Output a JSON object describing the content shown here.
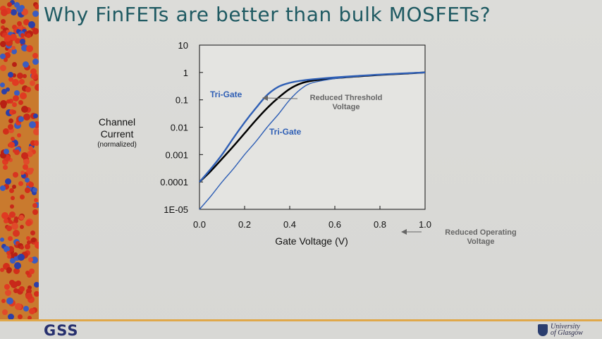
{
  "slide": {
    "title": "Why FinFETs are better than bulk MOSFETs?",
    "footer_logo": "GSS",
    "university_line1": "University",
    "university_line2": "of Glasgow",
    "colors": {
      "title": "#1f5a62",
      "sidebar": "#c97a2e",
      "footer_rule": "#e0a84a",
      "tri_gate": "#2f5fb5",
      "bulk": "#000000"
    }
  },
  "chart_data": {
    "type": "line",
    "xlabel": "Gate Voltage (V)",
    "ylabel_line1": "Channel",
    "ylabel_line2": "Current",
    "ylabel_sub": "(normalized)",
    "xlim": [
      0.0,
      1.0
    ],
    "ylim": [
      1e-05,
      10
    ],
    "yscale": "log",
    "grid": false,
    "x_ticks": [
      "0.0",
      "0.2",
      "0.4",
      "0.6",
      "0.8",
      "1.0"
    ],
    "y_ticks": [
      {
        "value": 10,
        "label": "10"
      },
      {
        "value": 1,
        "label": "1"
      },
      {
        "value": 0.1,
        "label": "0.1"
      },
      {
        "value": 0.01,
        "label": "0.01"
      },
      {
        "value": 0.001,
        "label": "0.001"
      },
      {
        "value": 0.0001,
        "label": "0.0001"
      },
      {
        "value": 1e-05,
        "label": "1E-05"
      }
    ],
    "series": [
      {
        "color": "#000000",
        "x": [
          0,
          0.05,
          0.1,
          0.15,
          0.2,
          0.25,
          0.3,
          0.35,
          0.4,
          0.45,
          0.5,
          0.6,
          0.7,
          0.8,
          0.9,
          1.0
        ],
        "y": [
          0.0001,
          0.00025,
          0.0007,
          0.002,
          0.006,
          0.018,
          0.05,
          0.12,
          0.25,
          0.4,
          0.5,
          0.62,
          0.72,
          0.82,
          0.9,
          1.0
        ]
      },
      {
        "color": "#2f5fb5",
        "x": [
          0,
          0.05,
          0.1,
          0.15,
          0.2,
          0.25,
          0.3,
          0.35,
          0.4,
          0.45,
          0.5,
          0.6,
          0.7,
          0.8,
          0.9,
          1.0
        ],
        "y": [
          0.0001,
          0.0003,
          0.001,
          0.004,
          0.015,
          0.05,
          0.15,
          0.3,
          0.42,
          0.5,
          0.56,
          0.66,
          0.75,
          0.84,
          0.92,
          1.0
        ]
      },
      {
        "color": "#2f5fb5",
        "x": [
          0,
          0.05,
          0.1,
          0.15,
          0.2,
          0.25,
          0.3,
          0.35,
          0.4,
          0.45,
          0.5,
          0.6,
          0.7,
          0.8,
          0.9,
          1.0
        ],
        "y": [
          1e-05,
          3e-05,
          0.0001,
          0.0003,
          0.001,
          0.003,
          0.01,
          0.03,
          0.1,
          0.25,
          0.42,
          0.6,
          0.72,
          0.82,
          0.9,
          1.0
        ]
      }
    ],
    "annotations": {
      "tri_gate_upper": "Tri-Gate",
      "tri_gate_lower": "Tri-Gate",
      "threshold_line1": "Reduced Threshold",
      "threshold_line2": "Voltage",
      "operating_line1": "Reduced Operating",
      "operating_line2": "Voltage"
    }
  }
}
